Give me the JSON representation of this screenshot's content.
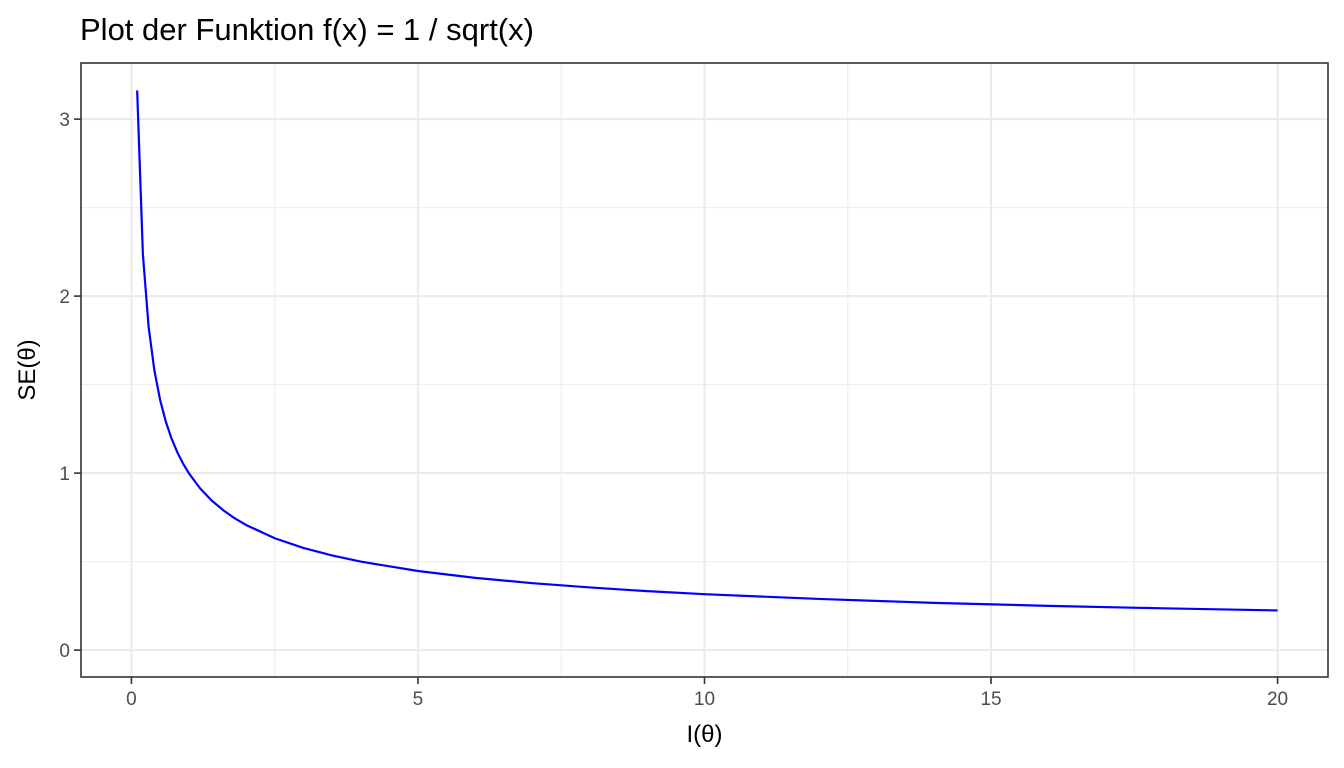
{
  "chart_data": {
    "type": "line",
    "title": "Plot der Funktion f(x) = 1 / sqrt(x)",
    "xlabel": "I(θ)",
    "ylabel": "SE(θ)",
    "xlim": [
      -0.88,
      20.88
    ],
    "ylim": [
      -0.152,
      3.317
    ],
    "x_ticks": [
      0,
      5,
      10,
      15,
      20
    ],
    "y_ticks": [
      0,
      1,
      2,
      3
    ],
    "x_tick_labels": [
      "0",
      "5",
      "10",
      "15",
      "20"
    ],
    "y_tick_labels": [
      "0",
      "1",
      "2",
      "3"
    ],
    "x_minor_ticks": [
      2.5,
      7.5,
      12.5,
      17.5
    ],
    "y_minor_ticks": [
      0.5,
      1.5,
      2.5
    ],
    "grid": true,
    "legend": "none",
    "series": [
      {
        "color": "#0000ff",
        "function": "1/sqrt(x)",
        "x": [
          0.1,
          0.2,
          0.3,
          0.4,
          0.5,
          0.6,
          0.7,
          0.8,
          0.9,
          1.0,
          1.2,
          1.4,
          1.6,
          1.8,
          2.0,
          2.5,
          3.0,
          3.5,
          4.0,
          5.0,
          6.0,
          7.0,
          8.0,
          9.0,
          10.0,
          12.0,
          14.0,
          16.0,
          18.0,
          20.0
        ],
        "y": [
          3.162,
          2.236,
          1.826,
          1.581,
          1.414,
          1.291,
          1.195,
          1.118,
          1.054,
          1.0,
          0.913,
          0.845,
          0.791,
          0.745,
          0.707,
          0.632,
          0.577,
          0.535,
          0.5,
          0.447,
          0.408,
          0.378,
          0.354,
          0.333,
          0.316,
          0.289,
          0.267,
          0.25,
          0.236,
          0.224
        ]
      }
    ]
  }
}
